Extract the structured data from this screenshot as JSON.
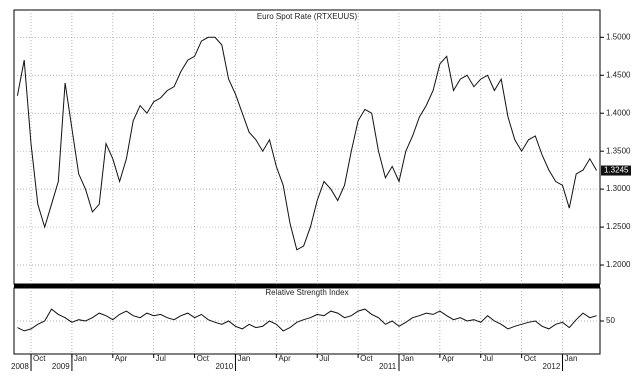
{
  "chart_data": [
    {
      "type": "line",
      "title": "Euro Spot Rate (RTXEUUS)",
      "color": "#111111",
      "grid": true,
      "categories": [
        null,
        null,
        "Oct",
        null,
        null,
        null,
        null,
        null,
        "Jan",
        null,
        null,
        null,
        null,
        null,
        "Apr",
        null,
        null,
        null,
        null,
        null,
        "Jul",
        null,
        null,
        null,
        null,
        null,
        "Oct",
        null,
        null,
        null,
        null,
        null,
        "Jan",
        null,
        null,
        null,
        null,
        null,
        "Apr",
        null,
        null,
        null,
        null,
        null,
        "Jul",
        null,
        null,
        null,
        null,
        null,
        "Oct",
        null,
        null,
        null,
        null,
        null,
        "Jan",
        null,
        null,
        null,
        null,
        null,
        "Apr",
        null,
        null,
        null,
        null,
        null,
        "Jul",
        null,
        null,
        null,
        null,
        null,
        "Oct",
        null,
        null,
        null,
        null,
        null,
        "Jan",
        null,
        null,
        null,
        null,
        null
      ],
      "years": [
        null,
        null,
        "2008",
        null,
        null,
        null,
        null,
        null,
        "2009",
        null,
        null,
        null,
        null,
        null,
        null,
        null,
        null,
        null,
        null,
        null,
        null,
        null,
        null,
        null,
        null,
        null,
        null,
        null,
        null,
        null,
        null,
        null,
        "2010",
        null,
        null,
        null,
        null,
        null,
        null,
        null,
        null,
        null,
        null,
        null,
        null,
        null,
        null,
        null,
        null,
        null,
        null,
        null,
        null,
        null,
        null,
        null,
        "2011",
        null,
        null,
        null,
        null,
        null,
        null,
        null,
        null,
        null,
        null,
        null,
        null,
        null,
        null,
        null,
        null,
        null,
        null,
        null,
        null,
        null,
        null,
        null,
        "2012",
        null,
        null,
        null,
        null,
        null
      ],
      "values": [
        1.423,
        1.47,
        1.36,
        1.28,
        1.25,
        1.28,
        1.31,
        1.44,
        1.38,
        1.32,
        1.3,
        1.27,
        1.28,
        1.36,
        1.34,
        1.31,
        1.34,
        1.39,
        1.41,
        1.4,
        1.415,
        1.42,
        1.43,
        1.435,
        1.455,
        1.47,
        1.475,
        1.495,
        1.5,
        1.5,
        1.49,
        1.445,
        1.425,
        1.4,
        1.375,
        1.365,
        1.35,
        1.365,
        1.33,
        1.305,
        1.255,
        1.22,
        1.225,
        1.25,
        1.285,
        1.31,
        1.3,
        1.285,
        1.305,
        1.35,
        1.39,
        1.405,
        1.4,
        1.35,
        1.315,
        1.33,
        1.31,
        1.35,
        1.37,
        1.395,
        1.41,
        1.43,
        1.465,
        1.475,
        1.43,
        1.445,
        1.45,
        1.435,
        1.445,
        1.45,
        1.43,
        1.445,
        1.395,
        1.365,
        1.35,
        1.365,
        1.37,
        1.345,
        1.325,
        1.31,
        1.305,
        1.275,
        1.32,
        1.325,
        1.34,
        1.3245
      ],
      "ylim": [
        1.175,
        1.536
      ],
      "yticks": [
        {
          "value": 1.2,
          "label": "1.2000"
        },
        {
          "value": 1.25,
          "label": "1.2500"
        },
        {
          "value": 1.3,
          "label": "1.3000"
        },
        {
          "value": 1.35,
          "label": "1.3500"
        },
        {
          "value": 1.4,
          "label": "1.4000"
        },
        {
          "value": 1.45,
          "label": "1.4500"
        },
        {
          "value": 1.5,
          "label": "1.5000"
        }
      ],
      "current_marker": {
        "value": 1.3245,
        "label": "1.3245"
      }
    },
    {
      "type": "line",
      "title": "Relative Strength Index",
      "color": "#111111",
      "grid": true,
      "values": [
        40,
        35,
        38,
        45,
        50,
        68,
        60,
        55,
        48,
        52,
        50,
        55,
        62,
        58,
        52,
        60,
        65,
        58,
        55,
        62,
        58,
        60,
        55,
        52,
        58,
        62,
        55,
        60,
        52,
        48,
        45,
        50,
        42,
        38,
        45,
        40,
        42,
        50,
        45,
        35,
        40,
        48,
        52,
        55,
        60,
        58,
        65,
        62,
        55,
        58,
        65,
        68,
        60,
        55,
        45,
        50,
        42,
        48,
        55,
        58,
        62,
        60,
        65,
        58,
        52,
        55,
        50,
        52,
        48,
        58,
        50,
        45,
        38,
        42,
        45,
        48,
        50,
        42,
        38,
        45,
        48,
        40,
        52,
        62,
        55,
        58
      ],
      "ylim": [
        0,
        100
      ],
      "yticks": [
        50
      ]
    }
  ]
}
